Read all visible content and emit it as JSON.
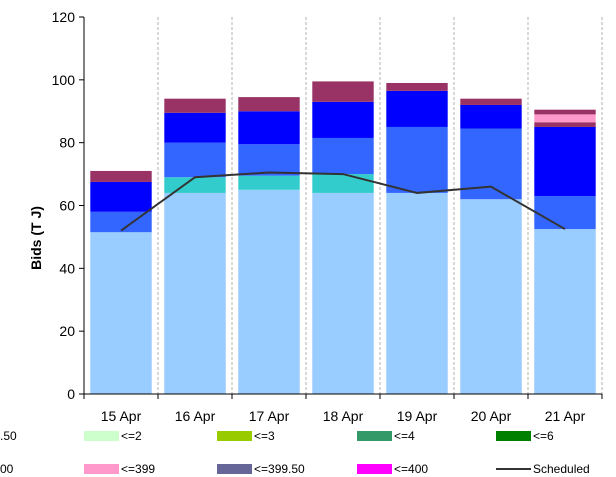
{
  "chart_data": {
    "type": "bar",
    "stacked": true,
    "ylabel": "Bids (T J)",
    "ylim": [
      0,
      120
    ],
    "yticks": [
      0,
      20,
      40,
      60,
      80,
      100,
      120
    ],
    "grid": "vertical dashed",
    "categories": [
      "15 Apr",
      "16 Apr",
      "17 Apr",
      "18 Apr",
      "19 Apr",
      "20 Apr",
      "21 Apr"
    ],
    "series": [
      {
        "name": "",
        "color": "#99ccff",
        "values": [
          51.5,
          64,
          65,
          64,
          64,
          62,
          52.5
        ]
      },
      {
        "name": "",
        "color": "#33cccc",
        "values": [
          0,
          5,
          4.5,
          6,
          0,
          0,
          0
        ]
      },
      {
        "name": "",
        "color": "#3366ff",
        "values": [
          6.5,
          11,
          10,
          11.5,
          21,
          22.5,
          10.5
        ]
      },
      {
        "name": "",
        "color": "#0000ff",
        "values": [
          9.5,
          9.5,
          10.5,
          11.5,
          11.5,
          7.5,
          22
        ]
      },
      {
        "name": "",
        "color": "#993366",
        "values": [
          3.5,
          4.5,
          4.5,
          6.5,
          2.5,
          2,
          1.5
        ]
      },
      {
        "name": "",
        "color": "#ff99cc",
        "values": [
          0,
          0,
          0,
          0,
          0,
          0,
          2.5
        ]
      },
      {
        "name": "",
        "color": "#993366",
        "values": [
          0,
          0,
          0,
          0,
          0,
          0,
          1.5
        ]
      }
    ],
    "line_series": {
      "name": "Scheduled",
      "color": "#333333",
      "values": [
        52,
        69,
        70.5,
        70,
        64,
        66,
        52.5
      ]
    },
    "legend": {
      "placement": "bottom",
      "rows": [
        [
          {
            "label": ".50",
            "color": null,
            "partial": true
          },
          {
            "label": "<=2",
            "color": "#ccffcc"
          },
          {
            "label": "<=3",
            "color": "#99cc00"
          },
          {
            "label": "<=4",
            "color": "#339966"
          },
          {
            "label": "<=6",
            "color": "#008000"
          }
        ],
        [
          {
            "label": "00",
            "color": null,
            "partial": true
          },
          {
            "label": "<=399",
            "color": "#ff99cc"
          },
          {
            "label": "<=399.50",
            "color": "#666699"
          },
          {
            "label": "<=400",
            "color": "#ff00ff"
          },
          {
            "label": "Scheduled",
            "color": "#333333",
            "line": true
          }
        ]
      ]
    }
  }
}
